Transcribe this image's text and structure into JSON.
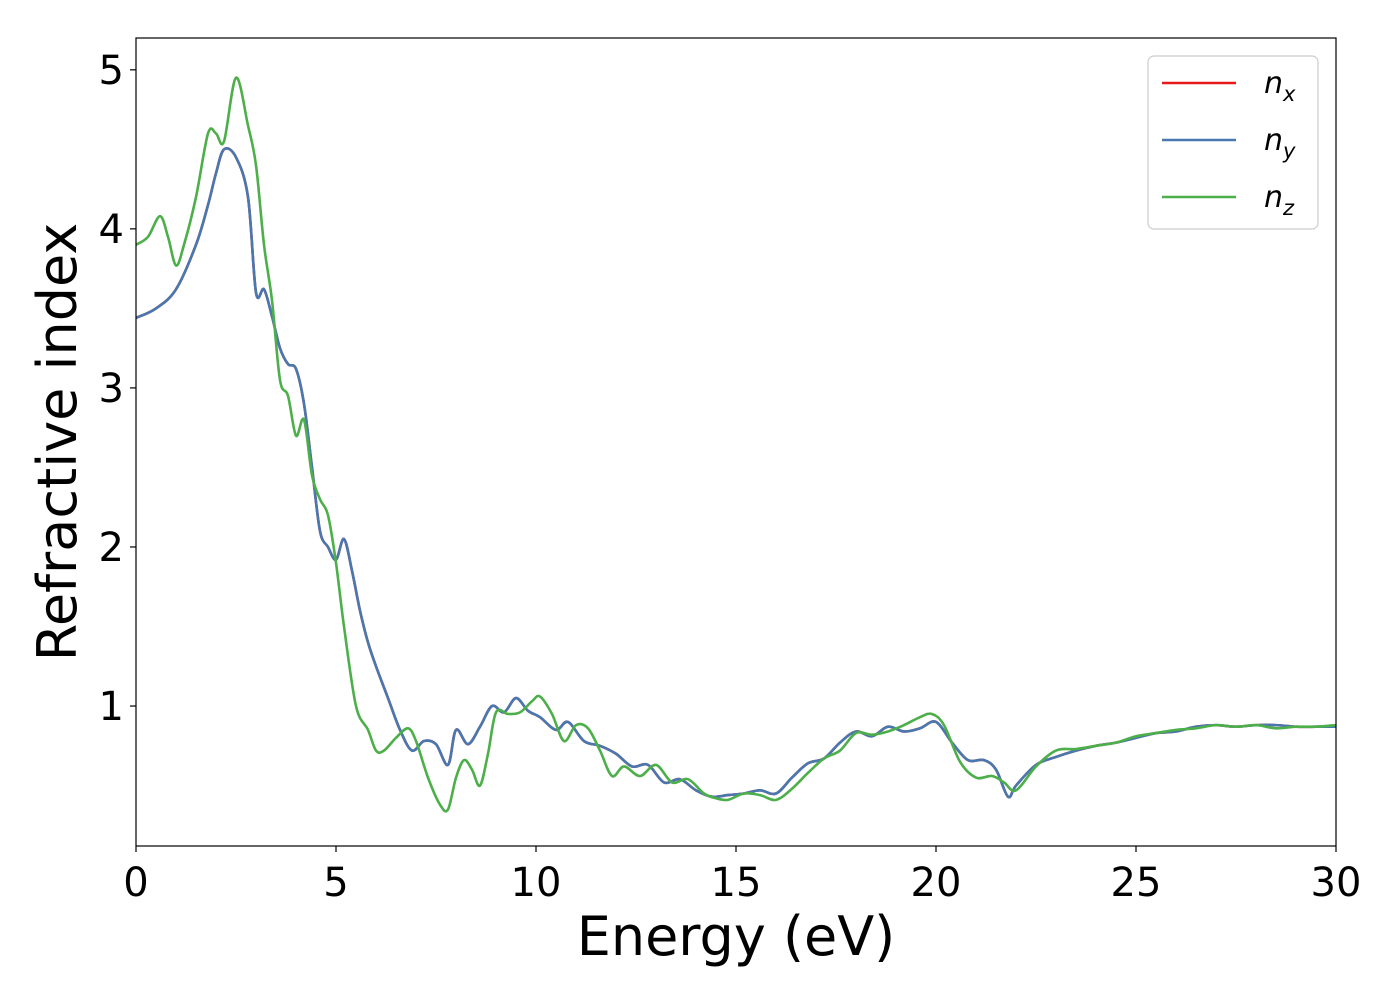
{
  "chart_data": {
    "type": "line",
    "xlabel": "Energy (eV)",
    "ylabel": "Refractive index",
    "xlim": [
      0,
      30
    ],
    "ylim": [
      0.12,
      5.2
    ],
    "xticks": [
      0,
      5,
      10,
      15,
      20,
      25,
      30
    ],
    "yticks": [
      1,
      2,
      3,
      4,
      5
    ],
    "grid": false,
    "legend_position": "top-right",
    "series": [
      {
        "name": "n_x",
        "legend_base": "n",
        "legend_sub": "x",
        "color": "#e41a1c",
        "x": [
          0,
          0.5,
          1.0,
          1.5,
          1.8,
          2.0,
          2.2,
          2.5,
          2.8,
          3.0,
          3.2,
          3.4,
          3.6,
          3.8,
          4.0,
          4.2,
          4.4,
          4.6,
          4.8,
          5.0,
          5.2,
          5.4,
          5.6,
          5.8,
          6.0,
          6.3,
          6.6,
          6.9,
          7.2,
          7.5,
          7.8,
          8.0,
          8.3,
          8.6,
          8.9,
          9.2,
          9.5,
          9.8,
          10.1,
          10.5,
          10.8,
          11.2,
          11.6,
          12.0,
          12.4,
          12.8,
          13.2,
          13.6,
          14.0,
          14.4,
          14.8,
          15.2,
          15.6,
          16.0,
          16.4,
          16.8,
          17.2,
          17.6,
          18.0,
          18.4,
          18.8,
          19.2,
          19.6,
          20.0,
          20.4,
          20.8,
          21.2,
          21.5,
          21.8,
          22.0,
          22.5,
          23.0,
          23.5,
          24.0,
          24.5,
          25.0,
          25.5,
          26.0,
          26.5,
          27.0,
          27.5,
          28.0,
          28.5,
          29.0,
          29.5,
          30.0
        ],
        "y": [
          3.44,
          3.5,
          3.62,
          3.9,
          4.15,
          4.35,
          4.5,
          4.45,
          4.2,
          3.6,
          3.62,
          3.45,
          3.25,
          3.15,
          3.12,
          2.9,
          2.5,
          2.1,
          2.0,
          1.92,
          2.05,
          1.85,
          1.6,
          1.4,
          1.25,
          1.05,
          0.85,
          0.72,
          0.78,
          0.76,
          0.63,
          0.85,
          0.76,
          0.87,
          1.0,
          0.96,
          1.05,
          0.97,
          0.93,
          0.85,
          0.9,
          0.78,
          0.75,
          0.7,
          0.62,
          0.63,
          0.52,
          0.54,
          0.47,
          0.43,
          0.44,
          0.45,
          0.47,
          0.45,
          0.55,
          0.64,
          0.67,
          0.77,
          0.84,
          0.81,
          0.87,
          0.84,
          0.86,
          0.9,
          0.77,
          0.66,
          0.66,
          0.6,
          0.43,
          0.5,
          0.63,
          0.68,
          0.72,
          0.75,
          0.77,
          0.8,
          0.83,
          0.84,
          0.87,
          0.88,
          0.87,
          0.88,
          0.88,
          0.87,
          0.87,
          0.87
        ]
      },
      {
        "name": "n_y",
        "legend_base": "n",
        "legend_sub": "y",
        "color": "#4878b0",
        "x": [
          0,
          0.5,
          1.0,
          1.5,
          1.8,
          2.0,
          2.2,
          2.5,
          2.8,
          3.0,
          3.2,
          3.4,
          3.6,
          3.8,
          4.0,
          4.2,
          4.4,
          4.6,
          4.8,
          5.0,
          5.2,
          5.4,
          5.6,
          5.8,
          6.0,
          6.3,
          6.6,
          6.9,
          7.2,
          7.5,
          7.8,
          8.0,
          8.3,
          8.6,
          8.9,
          9.2,
          9.5,
          9.8,
          10.1,
          10.5,
          10.8,
          11.2,
          11.6,
          12.0,
          12.4,
          12.8,
          13.2,
          13.6,
          14.0,
          14.4,
          14.8,
          15.2,
          15.6,
          16.0,
          16.4,
          16.8,
          17.2,
          17.6,
          18.0,
          18.4,
          18.8,
          19.2,
          19.6,
          20.0,
          20.4,
          20.8,
          21.2,
          21.5,
          21.8,
          22.0,
          22.5,
          23.0,
          23.5,
          24.0,
          24.5,
          25.0,
          25.5,
          26.0,
          26.5,
          27.0,
          27.5,
          28.0,
          28.5,
          29.0,
          29.5,
          30.0
        ],
        "y": [
          3.44,
          3.5,
          3.62,
          3.9,
          4.15,
          4.35,
          4.5,
          4.45,
          4.2,
          3.6,
          3.62,
          3.45,
          3.25,
          3.15,
          3.12,
          2.9,
          2.5,
          2.1,
          2.0,
          1.92,
          2.05,
          1.85,
          1.6,
          1.4,
          1.25,
          1.05,
          0.85,
          0.72,
          0.78,
          0.76,
          0.63,
          0.85,
          0.76,
          0.87,
          1.0,
          0.96,
          1.05,
          0.97,
          0.93,
          0.85,
          0.9,
          0.78,
          0.75,
          0.7,
          0.62,
          0.63,
          0.52,
          0.54,
          0.47,
          0.43,
          0.44,
          0.45,
          0.47,
          0.45,
          0.55,
          0.64,
          0.67,
          0.77,
          0.84,
          0.81,
          0.87,
          0.84,
          0.86,
          0.9,
          0.77,
          0.66,
          0.66,
          0.6,
          0.43,
          0.5,
          0.63,
          0.68,
          0.72,
          0.75,
          0.77,
          0.8,
          0.83,
          0.84,
          0.87,
          0.88,
          0.87,
          0.88,
          0.88,
          0.87,
          0.87,
          0.87
        ]
      },
      {
        "name": "n_z",
        "legend_base": "n",
        "legend_sub": "z",
        "color": "#4daf4a",
        "x": [
          0,
          0.3,
          0.6,
          0.8,
          1.0,
          1.2,
          1.5,
          1.8,
          2.0,
          2.2,
          2.5,
          2.8,
          3.0,
          3.2,
          3.4,
          3.6,
          3.8,
          4.0,
          4.2,
          4.4,
          4.6,
          4.8,
          5.0,
          5.2,
          5.5,
          5.8,
          6.0,
          6.2,
          6.5,
          6.8,
          7.0,
          7.3,
          7.6,
          7.8,
          8.0,
          8.2,
          8.4,
          8.6,
          8.8,
          9.0,
          9.3,
          9.6,
          9.9,
          10.1,
          10.4,
          10.7,
          11.0,
          11.3,
          11.6,
          11.9,
          12.2,
          12.6,
          13.0,
          13.4,
          13.8,
          14.2,
          14.5,
          14.8,
          15.2,
          15.6,
          16.0,
          16.4,
          16.8,
          17.2,
          17.6,
          18.0,
          18.4,
          18.8,
          19.2,
          19.6,
          19.9,
          20.2,
          20.6,
          21.0,
          21.4,
          21.7,
          22.0,
          22.5,
          23.0,
          23.5,
          24.0,
          24.5,
          25.0,
          25.5,
          26.0,
          26.5,
          27.0,
          27.5,
          28.0,
          28.5,
          29.0,
          29.5,
          30.0
        ],
        "y": [
          3.9,
          3.95,
          4.08,
          3.95,
          3.77,
          3.9,
          4.2,
          4.6,
          4.6,
          4.55,
          4.95,
          4.65,
          4.4,
          3.9,
          3.55,
          3.05,
          2.95,
          2.7,
          2.8,
          2.45,
          2.3,
          2.2,
          1.9,
          1.5,
          1.0,
          0.85,
          0.72,
          0.72,
          0.8,
          0.86,
          0.78,
          0.55,
          0.38,
          0.35,
          0.55,
          0.66,
          0.6,
          0.5,
          0.7,
          0.96,
          0.95,
          0.96,
          1.03,
          1.06,
          0.95,
          0.78,
          0.88,
          0.86,
          0.72,
          0.56,
          0.62,
          0.56,
          0.63,
          0.52,
          0.54,
          0.45,
          0.42,
          0.41,
          0.45,
          0.44,
          0.41,
          0.48,
          0.58,
          0.67,
          0.72,
          0.83,
          0.82,
          0.84,
          0.88,
          0.93,
          0.95,
          0.88,
          0.65,
          0.55,
          0.56,
          0.52,
          0.47,
          0.62,
          0.72,
          0.73,
          0.75,
          0.77,
          0.81,
          0.83,
          0.85,
          0.86,
          0.88,
          0.87,
          0.88,
          0.86,
          0.87,
          0.87,
          0.88
        ]
      }
    ]
  }
}
